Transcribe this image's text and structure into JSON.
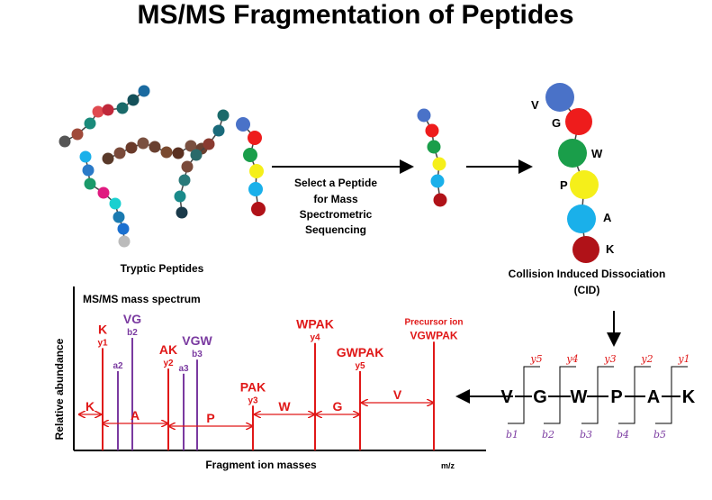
{
  "title": "MS/MS Fragmentation of Peptides",
  "labels": {
    "tryptic": "Tryptic Peptides",
    "select": [
      "Select a Peptide",
      "for Mass",
      "Spectrometric",
      "Sequencing"
    ],
    "cid": [
      "Collision Induced Dissociation",
      "(CID)"
    ]
  },
  "peptide_residues": [
    "V",
    "G",
    "W",
    "P",
    "A",
    "K"
  ],
  "bead_colors": {
    "V": "#4a72c8",
    "G": "#ee1c1c",
    "W": "#1a9e4a",
    "P": "#f5ef1a",
    "A": "#1ab0ea",
    "K": "#b01218"
  },
  "spectrum": {
    "title": "MS/MS mass spectrum",
    "ylabel": "Relative abundance",
    "xlabel": "Fragment ion masses",
    "xunit": "m/z",
    "precursor_label": "Precursor ion",
    "peaks": [
      {
        "seq": "K",
        "ion": "y1",
        "type": "y",
        "height": 0.8
      },
      {
        "seq": "",
        "ion": "a2",
        "type": "a",
        "height": 0.62
      },
      {
        "seq": "VG",
        "ion": "b2",
        "type": "b",
        "height": 0.88
      },
      {
        "seq": "AK",
        "ion": "y2",
        "type": "y",
        "height": 0.64
      },
      {
        "seq": "",
        "ion": "a3",
        "type": "a",
        "height": 0.6
      },
      {
        "seq": "VGW",
        "ion": "b3",
        "type": "b",
        "height": 0.71
      },
      {
        "seq": "PAK",
        "ion": "y3",
        "type": "y",
        "height": 0.35
      },
      {
        "seq": "WPAK",
        "ion": "y4",
        "type": "y",
        "height": 0.84
      },
      {
        "seq": "GWPAK",
        "ion": "y5",
        "type": "y",
        "height": 0.62
      },
      {
        "seq": "VGWPAK",
        "ion": "",
        "type": "precursor",
        "height": 0.85
      }
    ],
    "gap_labels": [
      "K",
      "A",
      "P",
      "W",
      "G",
      "V"
    ]
  },
  "ladder": {
    "sequence": [
      "V",
      "G",
      "W",
      "P",
      "A",
      "K"
    ],
    "y_ions": [
      "y5",
      "y4",
      "y3",
      "y2",
      "y1"
    ],
    "b_ions": [
      "b1",
      "b2",
      "b3",
      "b4",
      "b5"
    ]
  },
  "colors": {
    "y_ion": "#e01818",
    "b_ion": "#7a3aa0"
  }
}
